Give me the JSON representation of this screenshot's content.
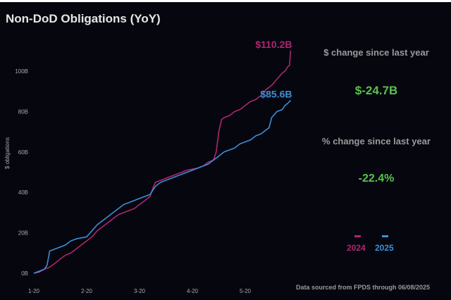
{
  "title": "Non-DoD Obligations (YoY)",
  "stats": {
    "dollar_label": "$ change since last year",
    "dollar_value": "$-24.7B",
    "pct_label": "% change since last year",
    "pct_value": "-22.4%"
  },
  "footer": "Data sourced from FPDS through 06/08/2025",
  "colors": {
    "background": "#06060f",
    "series_2024": "#b0266e",
    "series_2025": "#3d8fd6",
    "stat_value": "#59c24a"
  },
  "chart_data": {
    "type": "line",
    "ylabel": "$ obligations",
    "xlabel": "",
    "ylim": [
      0,
      115
    ],
    "xlim": [
      1,
      6
    ],
    "x_ticks": [
      {
        "value": 1,
        "label": "1-20"
      },
      {
        "value": 2,
        "label": "2-20"
      },
      {
        "value": 3,
        "label": "3-20"
      },
      {
        "value": 4,
        "label": "4-20"
      },
      {
        "value": 5,
        "label": "5-20"
      }
    ],
    "y_ticks": [
      {
        "value": 0,
        "label": "0B"
      },
      {
        "value": 20,
        "label": "20B"
      },
      {
        "value": 40,
        "label": "40B"
      },
      {
        "value": 60,
        "label": "60B"
      },
      {
        "value": 80,
        "label": "80B"
      },
      {
        "value": 100,
        "label": "100B"
      }
    ],
    "grid": false,
    "legend": "bottom-right",
    "series": [
      {
        "name": "2024",
        "color": "#b0266e",
        "end_label": "$110.2B",
        "points": [
          [
            1.0,
            0
          ],
          [
            1.1,
            0.5
          ],
          [
            1.2,
            2
          ],
          [
            1.3,
            3
          ],
          [
            1.4,
            5
          ],
          [
            1.5,
            7
          ],
          [
            1.6,
            9
          ],
          [
            1.7,
            10
          ],
          [
            1.8,
            12
          ],
          [
            1.9,
            14
          ],
          [
            2.0,
            16
          ],
          [
            2.1,
            18
          ],
          [
            2.2,
            21
          ],
          [
            2.3,
            23
          ],
          [
            2.4,
            25
          ],
          [
            2.5,
            27
          ],
          [
            2.6,
            29
          ],
          [
            2.7,
            30
          ],
          [
            2.8,
            31
          ],
          [
            2.9,
            32
          ],
          [
            3.0,
            34
          ],
          [
            3.1,
            36
          ],
          [
            3.2,
            38
          ],
          [
            3.25,
            42
          ],
          [
            3.3,
            45
          ],
          [
            3.4,
            46
          ],
          [
            3.5,
            47
          ],
          [
            3.6,
            48
          ],
          [
            3.7,
            49
          ],
          [
            3.8,
            50
          ],
          [
            3.9,
            51
          ],
          [
            4.0,
            51.5
          ],
          [
            4.1,
            52
          ],
          [
            4.2,
            53
          ],
          [
            4.3,
            55
          ],
          [
            4.4,
            56
          ],
          [
            4.45,
            60
          ],
          [
            4.5,
            70
          ],
          [
            4.55,
            76
          ],
          [
            4.6,
            77
          ],
          [
            4.7,
            78
          ],
          [
            4.8,
            80
          ],
          [
            4.9,
            81
          ],
          [
            5.0,
            83
          ],
          [
            5.1,
            85
          ],
          [
            5.2,
            86
          ],
          [
            5.3,
            88
          ],
          [
            5.4,
            91
          ],
          [
            5.5,
            93
          ],
          [
            5.6,
            96
          ],
          [
            5.7,
            99
          ],
          [
            5.75,
            100
          ],
          [
            5.8,
            102
          ],
          [
            5.84,
            103
          ],
          [
            5.85,
            108
          ],
          [
            5.86,
            110.2
          ]
        ]
      },
      {
        "name": "2025",
        "color": "#3d8fd6",
        "end_label": "$85.6B",
        "points": [
          [
            1.0,
            0
          ],
          [
            1.1,
            1
          ],
          [
            1.2,
            2
          ],
          [
            1.25,
            4
          ],
          [
            1.3,
            11
          ],
          [
            1.4,
            12
          ],
          [
            1.5,
            13
          ],
          [
            1.6,
            14
          ],
          [
            1.7,
            16
          ],
          [
            1.8,
            17
          ],
          [
            1.9,
            17.5
          ],
          [
            2.0,
            18
          ],
          [
            2.1,
            21
          ],
          [
            2.2,
            24
          ],
          [
            2.3,
            26
          ],
          [
            2.4,
            28
          ],
          [
            2.5,
            30
          ],
          [
            2.6,
            32
          ],
          [
            2.7,
            34
          ],
          [
            2.8,
            35
          ],
          [
            2.9,
            36
          ],
          [
            3.0,
            37
          ],
          [
            3.1,
            38
          ],
          [
            3.2,
            39
          ],
          [
            3.3,
            43
          ],
          [
            3.4,
            45
          ],
          [
            3.5,
            46
          ],
          [
            3.6,
            47
          ],
          [
            3.7,
            48
          ],
          [
            3.8,
            49
          ],
          [
            3.9,
            50
          ],
          [
            4.0,
            51
          ],
          [
            4.1,
            52
          ],
          [
            4.2,
            53
          ],
          [
            4.3,
            54
          ],
          [
            4.4,
            56
          ],
          [
            4.5,
            58
          ],
          [
            4.6,
            60
          ],
          [
            4.7,
            61
          ],
          [
            4.8,
            62
          ],
          [
            4.9,
            64
          ],
          [
            5.0,
            65
          ],
          [
            5.1,
            66
          ],
          [
            5.2,
            68
          ],
          [
            5.3,
            69
          ],
          [
            5.4,
            71
          ],
          [
            5.45,
            72
          ],
          [
            5.5,
            77
          ],
          [
            5.6,
            80
          ],
          [
            5.7,
            81
          ],
          [
            5.75,
            83
          ],
          [
            5.8,
            84
          ],
          [
            5.86,
            85.6
          ]
        ]
      }
    ]
  }
}
